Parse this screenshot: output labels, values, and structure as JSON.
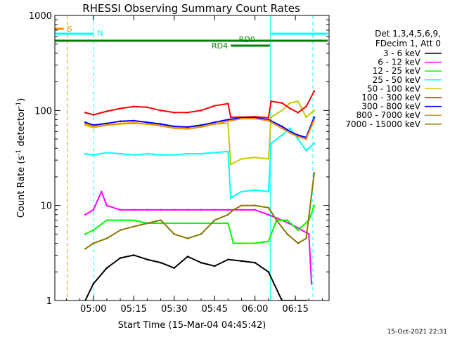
{
  "chart_data": {
    "type": "line",
    "title": "RHESSI Observing Summary Count Rates",
    "xlabel": "Start Time (15-Mar-04 04:45:42)",
    "ylabel_main": "Count Rate (s",
    "ylabel_sup1": "-1",
    "ylabel_mid": " detector",
    "ylabel_sup2": "-1",
    "ylabel_end": ")",
    "y_scale": "log",
    "ylim": [
      1,
      1000
    ],
    "xlim": [
      "04:45:42",
      "06:27:30"
    ],
    "x_ticks": [
      "05:00",
      "05:15",
      "05:30",
      "05:45",
      "06:00",
      "06:15"
    ],
    "y_ticks": [
      "1",
      "10",
      "100",
      "1000"
    ],
    "legend": {
      "position": "right",
      "header": [
        "Det 1,3,4,5,6,9,",
        "FDecim 1, Att 0"
      ],
      "entries": [
        {
          "label": "3 - 6 keV",
          "color": "#000000"
        },
        {
          "label": "6 - 12 keV",
          "color": "#ff00ff"
        },
        {
          "label": "12 - 25 keV",
          "color": "#00ff00"
        },
        {
          "label": "25 - 50 keV",
          "color": "#00ffff"
        },
        {
          "label": "50 - 100 keV",
          "color": "#c8c800"
        },
        {
          "label": "100 - 300 keV",
          "color": "#ff0000"
        },
        {
          "label": "300 - 800 keV",
          "color": "#0000ff"
        },
        {
          "label": "800 - 7000 keV",
          "color": "#ff8c00"
        },
        {
          "label": "7000 - 15000 keV",
          "color": "#8b7500"
        }
      ]
    },
    "annotations": {
      "S": {
        "label": "S",
        "color": "#ff8c00",
        "start": "04:45:42",
        "end": "04:49:00"
      },
      "N": {
        "label": "N",
        "color": "#00ffff",
        "segments": [
          [
            "04:45:42",
            "05:00:10"
          ],
          [
            "06:06:00",
            "06:27:00"
          ]
        ]
      },
      "RD0": {
        "label": "RD0",
        "color": "#008000",
        "start": "04:45:42",
        "end": "06:27:00"
      },
      "RD4": {
        "label": "RD4",
        "color": "#008000",
        "start": "05:51:00",
        "end": "06:05:30"
      },
      "vlines": [
        {
          "time": "04:50:20",
          "color": "#ff8c00",
          "style": "dashed"
        },
        {
          "time": "05:00:10",
          "color": "#00ffff",
          "style": "dashed"
        },
        {
          "time": "06:05:40",
          "color": "#00ffff",
          "style": "solid"
        },
        {
          "time": "06:21:30",
          "color": "#00ffff",
          "style": "dashed"
        }
      ]
    },
    "series": [
      {
        "name": "3 - 6 keV",
        "color": "#000000",
        "x": [
          "04:57",
          "05:00",
          "05:05",
          "05:10",
          "05:15",
          "05:20",
          "05:25",
          "05:30",
          "05:35",
          "05:40",
          "05:45",
          "05:50",
          "05:55",
          "06:00",
          "06:05",
          "06:10",
          "06:15",
          "06:19"
        ],
        "y": [
          1.0,
          1.5,
          2.2,
          2.8,
          3.0,
          2.7,
          2.5,
          2.2,
          2.9,
          2.5,
          2.3,
          2.7,
          2.6,
          2.5,
          2.0,
          1.0,
          1.0,
          1.0
        ]
      },
      {
        "name": "6 - 12 keV",
        "color": "#ff00ff",
        "x": [
          "04:57",
          "05:00",
          "05:03",
          "05:05",
          "05:10",
          "05:15",
          "05:20",
          "05:25",
          "05:30",
          "05:35",
          "05:40",
          "05:45",
          "05:50",
          "05:55",
          "06:00",
          "06:05",
          "06:10",
          "06:15",
          "06:20",
          "06:21"
        ],
        "y": [
          8,
          9,
          14,
          10,
          9,
          9,
          9,
          9,
          9,
          9,
          9,
          9,
          9,
          9,
          9,
          8,
          7,
          6,
          5,
          1.5
        ]
      },
      {
        "name": "12 - 25 keV",
        "color": "#00ff00",
        "x": [
          "04:57",
          "05:00",
          "05:05",
          "05:10",
          "05:15",
          "05:20",
          "05:25",
          "05:30",
          "05:35",
          "05:40",
          "05:45",
          "05:50",
          "05:52",
          "05:55",
          "06:00",
          "06:05",
          "06:08",
          "06:12",
          "06:16",
          "06:20",
          "06:22"
        ],
        "y": [
          5,
          5.5,
          7,
          7,
          7,
          6.5,
          6.5,
          6.5,
          6.5,
          6.5,
          6.5,
          6.5,
          4.0,
          4.0,
          4.0,
          4.2,
          7,
          7,
          5.5,
          7,
          10
        ]
      },
      {
        "name": "25 - 50 keV",
        "color": "#00ffff",
        "x": [
          "04:57",
          "05:00",
          "05:05",
          "05:10",
          "05:15",
          "05:20",
          "05:25",
          "05:30",
          "05:35",
          "05:40",
          "05:45",
          "05:50",
          "05:51",
          "05:55",
          "06:00",
          "06:05",
          "06:06",
          "06:10",
          "06:13",
          "06:16",
          "06:19",
          "06:22"
        ],
        "y": [
          35,
          34,
          36,
          35,
          34,
          35,
          34,
          34,
          35,
          35,
          36,
          37,
          12,
          14,
          14.5,
          14,
          45,
          55,
          65,
          50,
          38,
          45
        ]
      },
      {
        "name": "50 - 100 keV",
        "color": "#c8c800",
        "x": [
          "04:57",
          "05:00",
          "05:05",
          "05:10",
          "05:15",
          "05:20",
          "05:25",
          "05:30",
          "05:35",
          "05:40",
          "05:45",
          "05:50",
          "05:51",
          "05:55",
          "06:00",
          "06:05",
          "06:06",
          "06:10",
          "06:13",
          "06:16",
          "06:19",
          "06:22"
        ],
        "y": [
          70,
          66,
          70,
          72,
          73,
          72,
          70,
          67,
          66,
          68,
          72,
          73,
          27,
          31,
          32,
          31,
          85,
          100,
          120,
          125,
          85,
          100
        ]
      },
      {
        "name": "100 - 300 keV",
        "color": "#ff0000",
        "x": [
          "04:57",
          "05:00",
          "05:05",
          "05:10",
          "05:15",
          "05:20",
          "05:25",
          "05:30",
          "05:35",
          "05:40",
          "05:45",
          "05:50",
          "05:51",
          "05:55",
          "06:00",
          "06:05",
          "06:06",
          "06:10",
          "06:13",
          "06:16",
          "06:19",
          "06:22"
        ],
        "y": [
          95,
          90,
          98,
          105,
          110,
          108,
          100,
          95,
          95,
          100,
          112,
          118,
          85,
          85,
          86,
          84,
          125,
          120,
          105,
          95,
          110,
          160
        ]
      },
      {
        "name": "300 - 800 keV",
        "color": "#0000ff",
        "x": [
          "04:57",
          "05:00",
          "05:05",
          "05:10",
          "05:15",
          "05:20",
          "05:25",
          "05:30",
          "05:35",
          "05:40",
          "05:45",
          "05:50",
          "05:55",
          "06:00",
          "06:05",
          "06:10",
          "06:13",
          "06:16",
          "06:19",
          "06:22"
        ],
        "y": [
          75,
          70,
          73,
          77,
          78,
          75,
          72,
          68,
          67,
          70,
          75,
          80,
          84,
          84,
          80,
          68,
          60,
          55,
          52,
          85
        ]
      },
      {
        "name": "800 - 7000 keV",
        "color": "#ff8c00",
        "x": [
          "04:57",
          "05:00",
          "05:05",
          "05:10",
          "05:15",
          "05:20",
          "05:25",
          "05:30",
          "05:35",
          "05:40",
          "05:45",
          "05:50",
          "05:55",
          "06:00",
          "06:05",
          "06:10",
          "06:13",
          "06:16",
          "06:19",
          "06:22"
        ],
        "y": [
          72,
          68,
          70,
          73,
          74,
          72,
          69,
          65,
          64,
          67,
          72,
          77,
          82,
          82,
          78,
          65,
          58,
          53,
          50,
          80
        ]
      },
      {
        "name": "7000 - 15000 keV",
        "color": "#8b7500",
        "x": [
          "04:57",
          "05:00",
          "05:05",
          "05:10",
          "05:15",
          "05:20",
          "05:25",
          "05:30",
          "05:35",
          "05:40",
          "05:45",
          "05:50",
          "05:52",
          "05:55",
          "06:00",
          "06:05",
          "06:08",
          "06:12",
          "06:16",
          "06:19",
          "06:22"
        ],
        "y": [
          3.5,
          4.0,
          4.5,
          5.5,
          6,
          6.5,
          7,
          5,
          4.5,
          5,
          7,
          8,
          9,
          10,
          10,
          9.5,
          7,
          5,
          4,
          4.5,
          22
        ]
      }
    ]
  },
  "footer_timestamp": "15-Oct-2021 22:31"
}
